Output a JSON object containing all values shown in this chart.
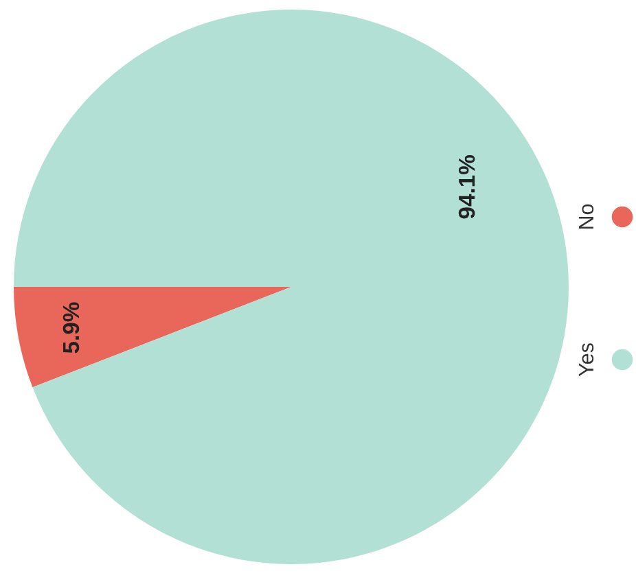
{
  "chart_data": {
    "type": "pie",
    "categories": [
      "No",
      "Yes"
    ],
    "values": [
      5.9,
      94.1
    ],
    "value_labels": [
      "5.9%",
      "94.1%"
    ],
    "colors": [
      "#e8675a",
      "#b3e0d5"
    ],
    "legend": "right"
  }
}
